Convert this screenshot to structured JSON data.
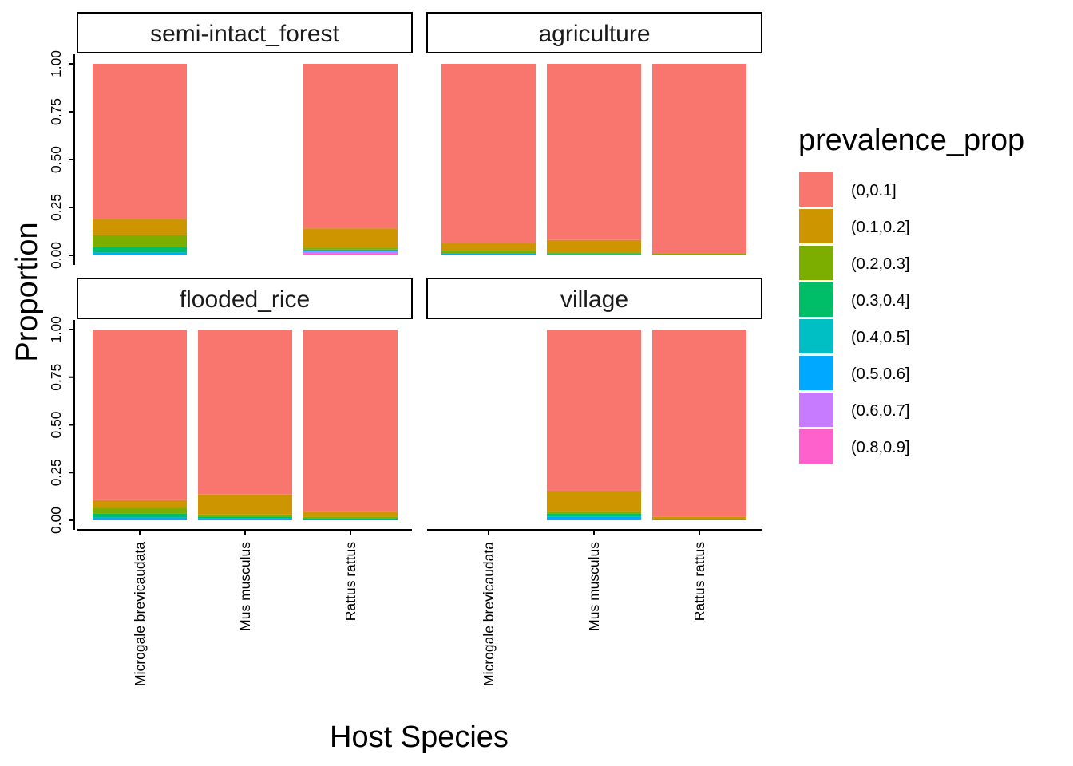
{
  "chart_data": {
    "type": "bar",
    "stacked": true,
    "xlabel": "Host Species",
    "ylabel": "Proportion",
    "ylim": [
      0,
      1
    ],
    "yticks": [
      "0.00",
      "0.25",
      "0.50",
      "0.75",
      "1.00"
    ],
    "categories": [
      "Microgale brevicaudata",
      "Mus musculus",
      "Rattus rattus"
    ],
    "legend": {
      "title": "prevalence_prop",
      "position": "right",
      "items": [
        {
          "label": "(0,0.1]",
          "color": "#F8766D"
        },
        {
          "label": "(0.1,0.2]",
          "color": "#CD9600"
        },
        {
          "label": "(0.2,0.3]",
          "color": "#7CAE00"
        },
        {
          "label": "(0.3,0.4]",
          "color": "#00BE67"
        },
        {
          "label": "(0.4,0.5]",
          "color": "#00BFC4"
        },
        {
          "label": "(0.5,0.6]",
          "color": "#00A9FF"
        },
        {
          "label": "(0.6,0.7]",
          "color": "#C77CFF"
        },
        {
          "label": "(0.8,0.9]",
          "color": "#FF61CC"
        }
      ]
    },
    "facets": [
      {
        "name": "semi-intact_forest",
        "bars": [
          {
            "category": "Microgale brevicaudata",
            "segments": [
              {
                "bin": "(0.5,0.6]",
                "value": 0.015
              },
              {
                "bin": "(0.3,0.4]",
                "value": 0.03
              },
              {
                "bin": "(0.2,0.3]",
                "value": 0.06
              },
              {
                "bin": "(0.1,0.2]",
                "value": 0.085
              },
              {
                "bin": "(0,0.1]",
                "value": 0.81
              }
            ]
          },
          {
            "category": "Mus musculus",
            "segments": []
          },
          {
            "category": "Rattus rattus",
            "segments": [
              {
                "bin": "(0.8,0.9]",
                "value": 0.012
              },
              {
                "bin": "(0.6,0.7]",
                "value": 0.008
              },
              {
                "bin": "(0.5,0.6]",
                "value": 0.01
              },
              {
                "bin": "(0.2,0.3]",
                "value": 0.01
              },
              {
                "bin": "(0.1,0.2]",
                "value": 0.1
              },
              {
                "bin": "(0,0.1]",
                "value": 0.86
              }
            ]
          }
        ]
      },
      {
        "name": "agriculture",
        "bars": [
          {
            "category": "Microgale brevicaudata",
            "segments": [
              {
                "bin": "(0.5,0.6]",
                "value": 0.01
              },
              {
                "bin": "(0.2,0.3]",
                "value": 0.015
              },
              {
                "bin": "(0.1,0.2]",
                "value": 0.04
              },
              {
                "bin": "(0,0.1]",
                "value": 0.935
              }
            ]
          },
          {
            "category": "Mus musculus",
            "segments": [
              {
                "bin": "(0.5,0.6]",
                "value": 0.005
              },
              {
                "bin": "(0.3,0.4]",
                "value": 0.005
              },
              {
                "bin": "(0.2,0.3]",
                "value": 0.005
              },
              {
                "bin": "(0.1,0.2]",
                "value": 0.065
              },
              {
                "bin": "(0,0.1]",
                "value": 0.92
              }
            ]
          },
          {
            "category": "Rattus rattus",
            "segments": [
              {
                "bin": "(0.3,0.4]",
                "value": 0.004
              },
              {
                "bin": "(0.2,0.3]",
                "value": 0.006
              },
              {
                "bin": "(0,0.1]",
                "value": 0.99
              }
            ]
          }
        ]
      },
      {
        "name": "flooded_rice",
        "bars": [
          {
            "category": "Microgale brevicaudata",
            "segments": [
              {
                "bin": "(0.5,0.6]",
                "value": 0.015
              },
              {
                "bin": "(0.3,0.4]",
                "value": 0.02
              },
              {
                "bin": "(0.2,0.3]",
                "value": 0.03
              },
              {
                "bin": "(0.1,0.2]",
                "value": 0.04
              },
              {
                "bin": "(0,0.1]",
                "value": 0.895
              }
            ]
          },
          {
            "category": "Mus musculus",
            "segments": [
              {
                "bin": "(0.5,0.6]",
                "value": 0.01
              },
              {
                "bin": "(0.3,0.4]",
                "value": 0.01
              },
              {
                "bin": "(0.2,0.3]",
                "value": 0.01
              },
              {
                "bin": "(0.1,0.2]",
                "value": 0.105
              },
              {
                "bin": "(0,0.1]",
                "value": 0.865
              }
            ]
          },
          {
            "category": "Rattus rattus",
            "segments": [
              {
                "bin": "(0.3,0.4]",
                "value": 0.01
              },
              {
                "bin": "(0.2,0.3]",
                "value": 0.01
              },
              {
                "bin": "(0.1,0.2]",
                "value": 0.025
              },
              {
                "bin": "(0,0.1]",
                "value": 0.955
              }
            ]
          }
        ]
      },
      {
        "name": "village",
        "bars": [
          {
            "category": "Microgale brevicaudata",
            "segments": []
          },
          {
            "category": "Mus musculus",
            "segments": [
              {
                "bin": "(0.5,0.6]",
                "value": 0.02
              },
              {
                "bin": "(0.3,0.4]",
                "value": 0.015
              },
              {
                "bin": "(0.2,0.3]",
                "value": 0.01
              },
              {
                "bin": "(0.1,0.2]",
                "value": 0.11
              },
              {
                "bin": "(0,0.1]",
                "value": 0.845
              }
            ]
          },
          {
            "category": "Rattus rattus",
            "segments": [
              {
                "bin": "(0.2,0.3]",
                "value": 0.005
              },
              {
                "bin": "(0.1,0.2]",
                "value": 0.015
              },
              {
                "bin": "(0,0.1]",
                "value": 0.98
              }
            ]
          }
        ]
      }
    ]
  }
}
